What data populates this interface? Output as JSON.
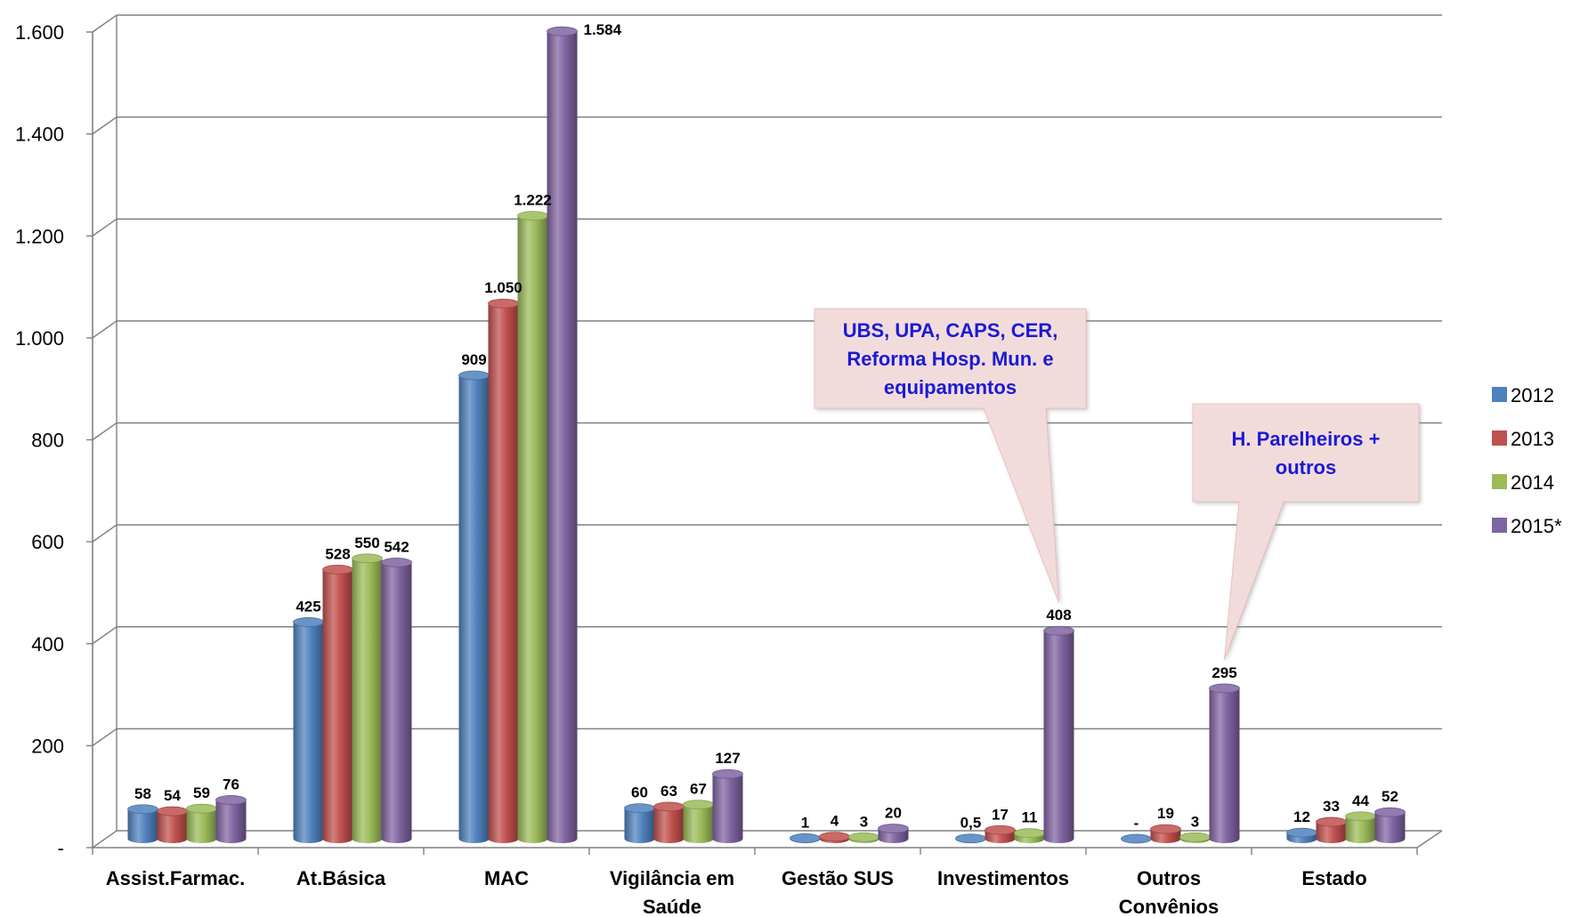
{
  "chart_data": {
    "type": "bar",
    "title": "",
    "xlabel": "",
    "ylabel": "",
    "ylim": [
      0,
      1600
    ],
    "yticks": [
      {
        "value": 0,
        "label": "-"
      },
      {
        "value": 200,
        "label": "200"
      },
      {
        "value": 400,
        "label": "400"
      },
      {
        "value": 600,
        "label": "600"
      },
      {
        "value": 800,
        "label": "800"
      },
      {
        "value": 1000,
        "label": "1.000"
      },
      {
        "value": 1200,
        "label": "1.200"
      },
      {
        "value": 1400,
        "label": "1.400"
      },
      {
        "value": 1600,
        "label": "1.600"
      }
    ],
    "categories": [
      [
        "Assist.Farmac."
      ],
      [
        "At.Básica"
      ],
      [
        "MAC"
      ],
      [
        "Vigilância em",
        "Saúde"
      ],
      [
        "Gestão SUS"
      ],
      [
        "Investimentos"
      ],
      [
        "Outros",
        "Convênios"
      ],
      [
        "Estado"
      ]
    ],
    "series": [
      {
        "name": "2012",
        "color": "#4f81bd",
        "values": [
          58,
          425,
          909,
          60,
          1,
          0.5,
          0,
          12
        ],
        "labels": [
          "58",
          "425",
          "909",
          "60",
          "1",
          "0,5",
          "-",
          "12"
        ]
      },
      {
        "name": "2013",
        "color": "#c0504d",
        "values": [
          54,
          528,
          1050,
          63,
          4,
          17,
          19,
          33
        ],
        "labels": [
          "54",
          "528",
          "1.050",
          "63",
          "4",
          "17",
          "19",
          "33"
        ]
      },
      {
        "name": "2014",
        "color": "#9bbb59",
        "values": [
          59,
          550,
          1222,
          67,
          3,
          11,
          3,
          44
        ],
        "labels": [
          "59",
          "550",
          "1.222",
          "67",
          "3",
          "11",
          "3",
          "44"
        ]
      },
      {
        "name": "2015*",
        "color": "#8064a2",
        "values": [
          76,
          542,
          1584,
          127,
          20,
          408,
          295,
          52
        ],
        "labels": [
          "76",
          "542",
          "1.584",
          "127",
          "20",
          "408",
          "295",
          "52"
        ]
      }
    ],
    "legend_position": "right",
    "grid": true,
    "annotations": [
      {
        "lines": [
          "UBS, UPA, CAPS, CER,",
          "Reforma Hosp. Mun. e",
          "equipamentos"
        ],
        "target_category": "Investimentos",
        "target_series": "2015*",
        "fill": "#f2dcdb"
      },
      {
        "lines": [
          "H. Parelheiros +",
          "outros"
        ],
        "target_category": "Outros Convênios",
        "target_series": "2015*",
        "fill": "#f2dcdb"
      }
    ]
  }
}
